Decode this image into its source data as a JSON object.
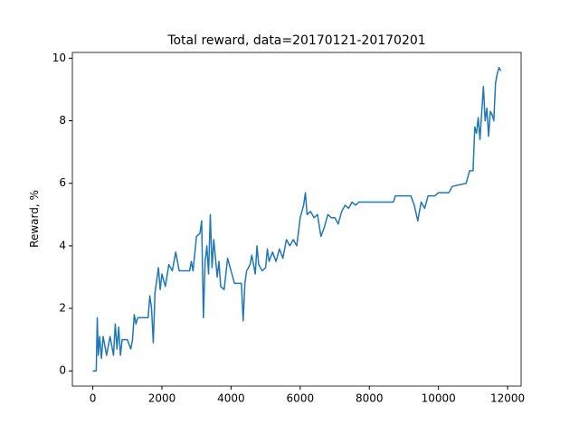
{
  "chart_data": {
    "type": "line",
    "title": "Total reward, data=20170121-20170201",
    "ylabel": "Reward, %",
    "x": [
      0,
      100,
      130,
      160,
      200,
      250,
      300,
      400,
      500,
      600,
      650,
      700,
      750,
      800,
      850,
      1000,
      1100,
      1150,
      1200,
      1250,
      1300,
      1600,
      1650,
      1700,
      1750,
      1800,
      1850,
      1900,
      1950,
      2000,
      2100,
      2200,
      2300,
      2400,
      2500,
      2800,
      2850,
      2900,
      3000,
      3100,
      3150,
      3200,
      3250,
      3300,
      3350,
      3400,
      3450,
      3500,
      3600,
      3650,
      3700,
      3800,
      3900,
      4000,
      4050,
      4100,
      4300,
      4350,
      4400,
      4450,
      4500,
      4550,
      4600,
      4700,
      4750,
      4800,
      4900,
      5000,
      5050,
      5100,
      5200,
      5300,
      5400,
      5500,
      5600,
      5700,
      5800,
      5900,
      6000,
      6100,
      6150,
      6200,
      6300,
      6400,
      6500,
      6600,
      6700,
      6800,
      6900,
      7000,
      7100,
      7200,
      7300,
      7400,
      7500,
      7600,
      7700,
      7800,
      8000,
      8700,
      8750,
      9200,
      9300,
      9400,
      9500,
      9600,
      9700,
      9800,
      9900,
      10000,
      10300,
      10400,
      10800,
      10900,
      11000,
      11050,
      11100,
      11150,
      11200,
      11300,
      11350,
      11400,
      11450,
      11500,
      11550,
      11600,
      11650,
      11700,
      11750,
      11800
    ],
    "series": [
      {
        "color": "#1f77b4",
        "values": [
          0,
          0,
          1.7,
          0.5,
          1.1,
          0.4,
          1.1,
          0.5,
          1.1,
          0.5,
          1.5,
          0.7,
          1.4,
          0.5,
          1.0,
          1.0,
          0.7,
          1.0,
          1.8,
          1.5,
          1.7,
          1.7,
          2.4,
          2.0,
          0.9,
          2.5,
          2.9,
          3.3,
          2.6,
          3.1,
          2.7,
          3.4,
          3.2,
          3.8,
          3.2,
          3.2,
          3.5,
          3.2,
          4.3,
          4.4,
          4.8,
          1.7,
          3.5,
          4.0,
          3.1,
          5.0,
          3.3,
          4.2,
          3.0,
          3.5,
          2.7,
          2.6,
          3.6,
          3.2,
          3.0,
          2.8,
          2.8,
          1.6,
          2.8,
          3.2,
          3.3,
          3.4,
          3.7,
          3.1,
          4.0,
          3.4,
          3.2,
          3.3,
          3.9,
          3.5,
          3.8,
          3.5,
          3.9,
          3.6,
          4.2,
          4.0,
          4.2,
          4.0,
          4.9,
          5.3,
          5.7,
          5.0,
          5.1,
          4.9,
          5.0,
          4.3,
          4.6,
          5.0,
          4.9,
          4.9,
          4.7,
          5.1,
          5.3,
          5.2,
          5.4,
          5.3,
          5.4,
          5.4,
          5.4,
          5.4,
          5.6,
          5.6,
          5.3,
          4.8,
          5.4,
          5.2,
          5.6,
          5.6,
          5.6,
          5.7,
          5.7,
          5.9,
          6.0,
          6.4,
          6.4,
          7.8,
          7.6,
          8.1,
          7.4,
          9.1,
          8.0,
          8.4,
          7.5,
          8.3,
          8.2,
          8.0,
          9.2,
          9.5,
          9.7,
          9.6
        ]
      }
    ],
    "xlim": [
      -590,
      12390
    ],
    "ylim": [
      -0.485,
      10.185
    ],
    "xticks": [
      0,
      2000,
      4000,
      6000,
      8000,
      10000,
      12000
    ],
    "yticks": [
      0,
      2,
      4,
      6,
      8,
      10
    ]
  }
}
